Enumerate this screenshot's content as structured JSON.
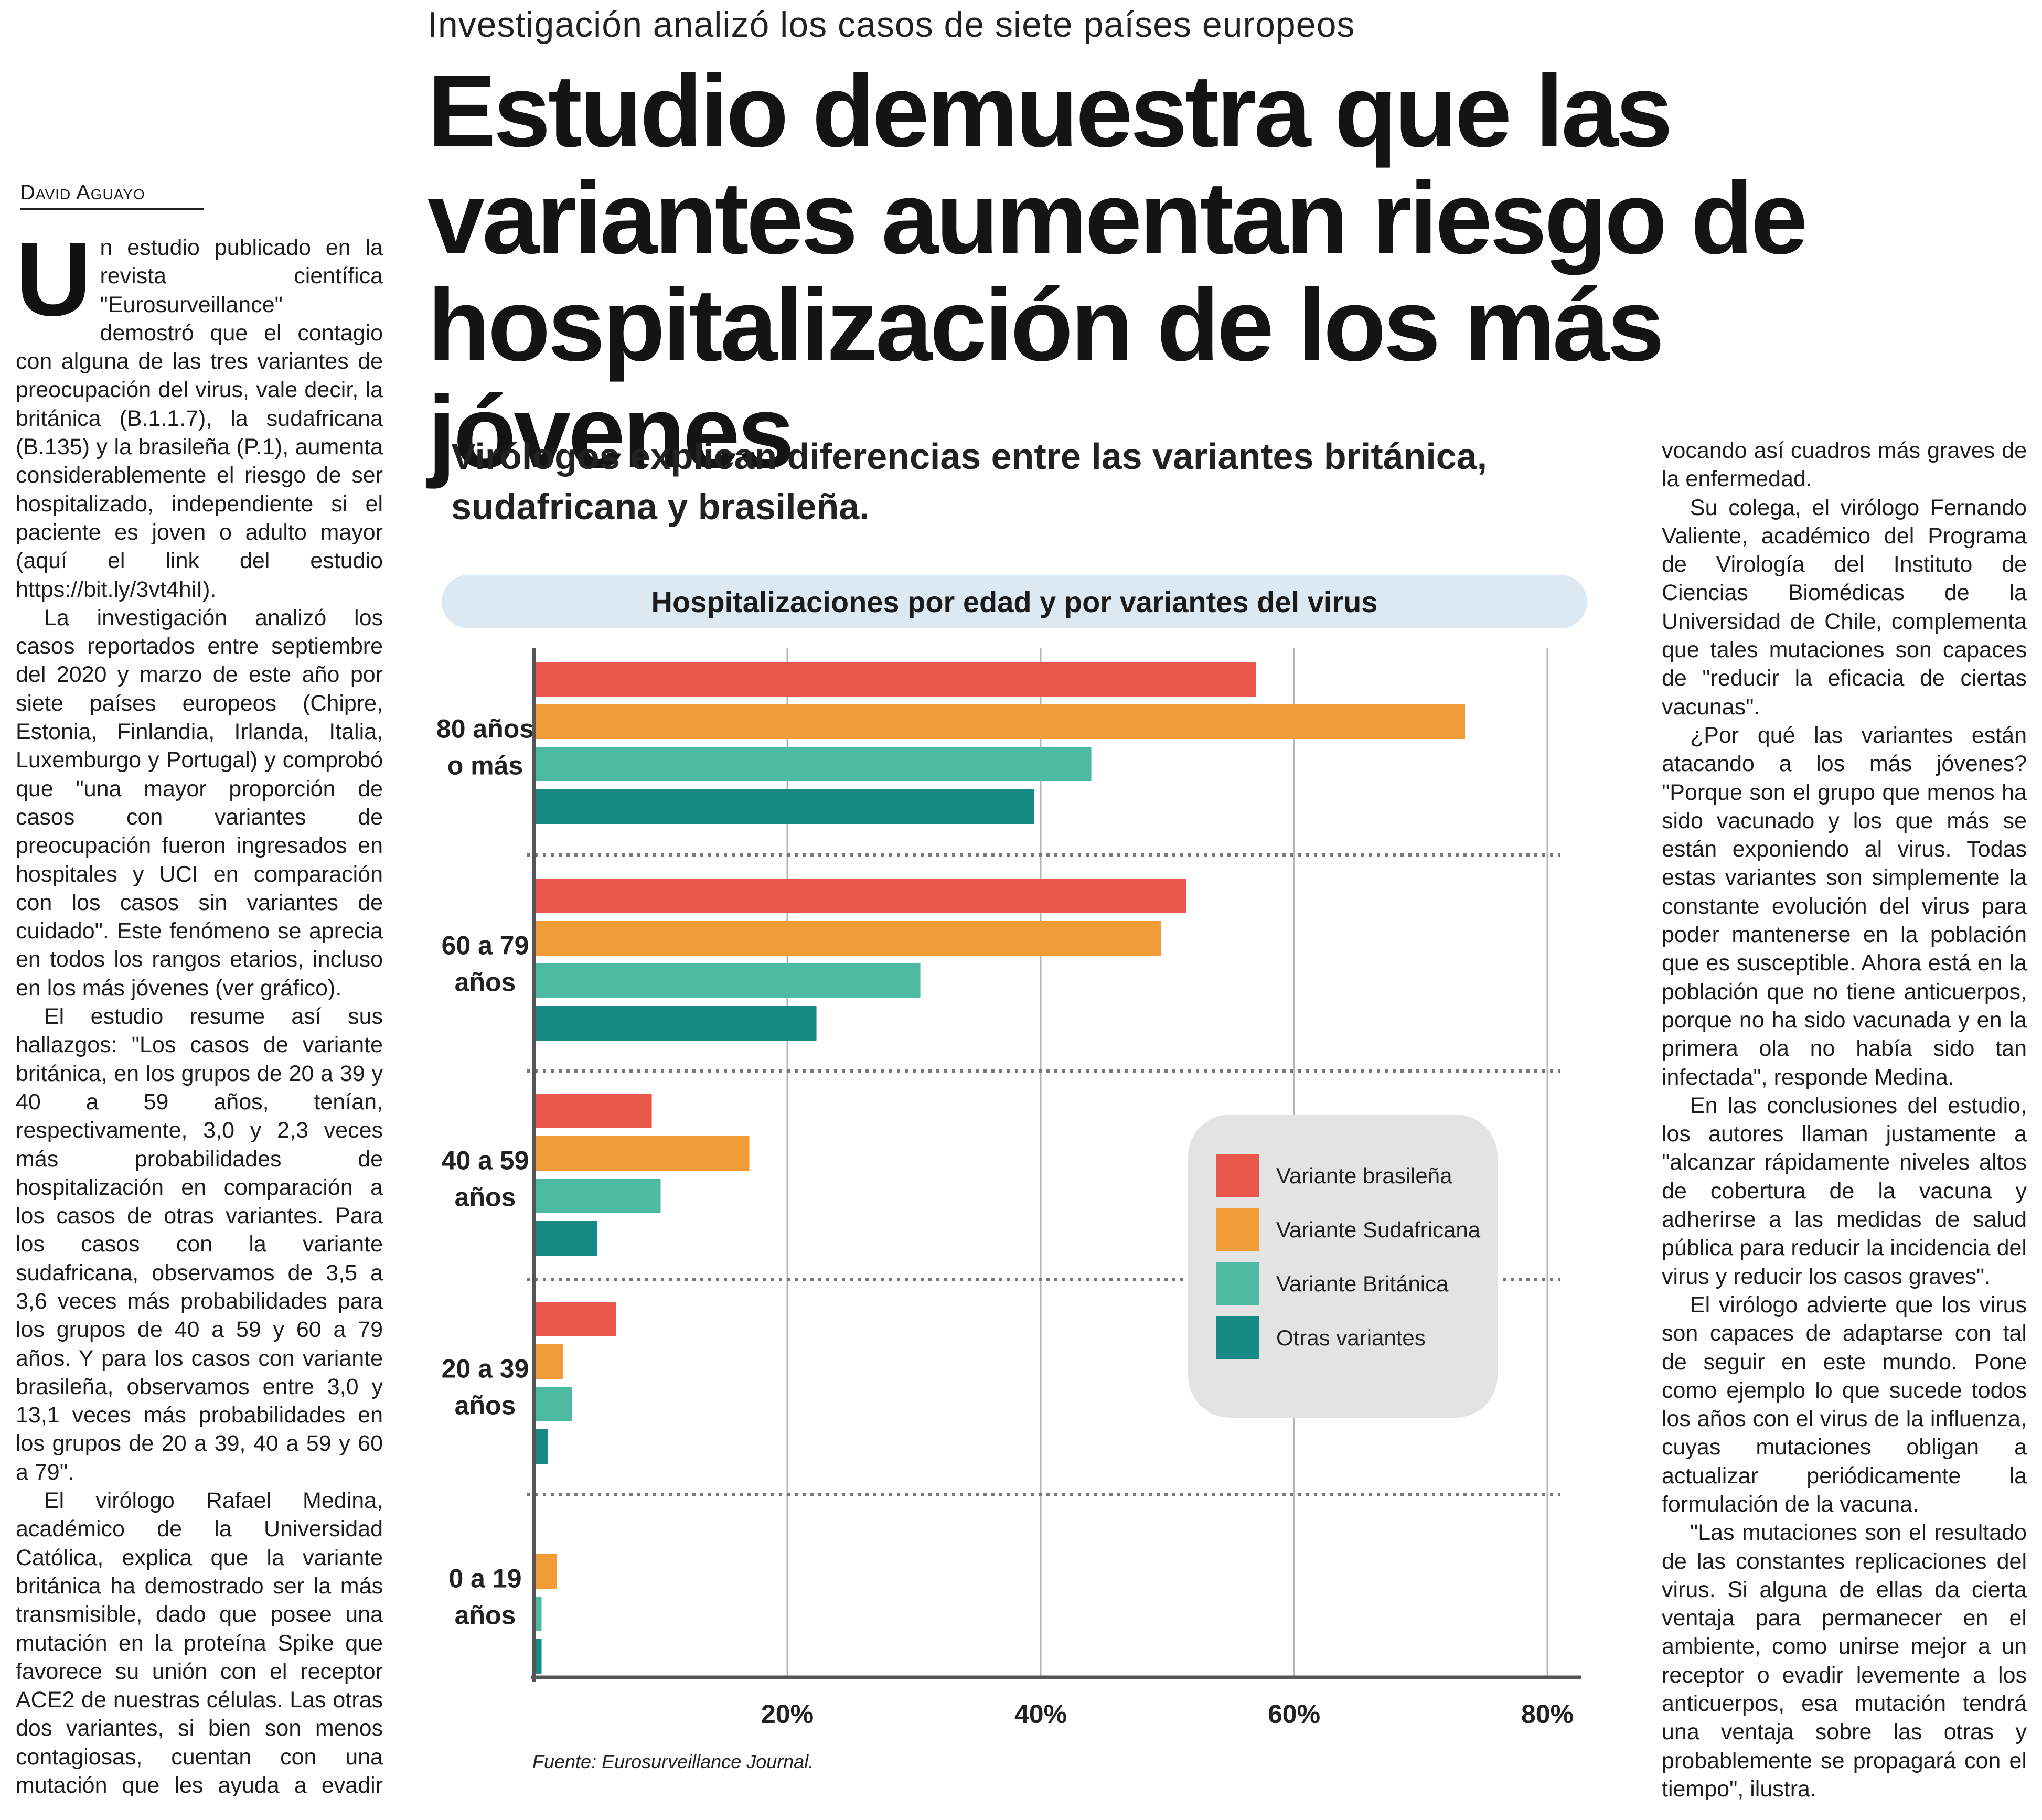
{
  "kicker": "Investigación analizó los casos de siete países europeos",
  "headline": "Estudio demuestra que las variantes aumentan riesgo de hospitalización de los más jóvenes",
  "byline": "David Aguayo",
  "subhead": "Virólogos explican diferencias entre las variantes británica, sudafricana y brasileña.",
  "left_column": {
    "dropcap": "U",
    "paragraphs": [
      "n estudio publicado en la revista científica \"Eurosurveillance\" demostró que el contagio con alguna de las tres variantes de preocupación del virus, vale decir, la británica (B.1.1.7), la sudafricana (B.135) y la brasileña (P.1), aumenta considerablemente el riesgo de ser hospitalizado, independiente si el paciente es joven o adulto mayor (aquí el link del estudio https://bit.ly/3vt4hiI).",
      "La investigación analizó los casos reportados entre septiembre del 2020 y marzo de este año por siete países europeos (Chipre, Estonia, Finlandia, Irlanda, Italia, Luxemburgo y Portugal) y comprobó que \"una mayor proporción de casos con variantes de preocupación fueron ingresados en hospitales y UCI en comparación con los casos sin variantes de cuidado\". Este fenómeno se aprecia en todos los rangos etarios, incluso en los más jóvenes (ver gráfico).",
      "El estudio resume así sus hallazgos: \"Los casos de variante británica, en los grupos de 20 a 39 y 40 a 59 años, tenían, respectivamente, 3,0 y 2,3 veces más probabilidades de hospitalización en comparación a los casos de otras variantes. Para los casos con la variante sudafricana, observamos de 3,5 a 3,6 veces más probabilidades para los grupos de 40 a 59 y 60 a 79 años. Y para los casos con variante brasileña, observamos entre 3,0 y 13,1 veces más probabilidades en los grupos de 20 a 39, 40 a 59 y 60 a 79\".",
      "El virólogo Rafael Medina, académico de la Universidad Católica, explica que la variante británica ha demostrado ser la más transmisible, dado que posee una mutación en la proteína Spike que favorece su unión con el receptor ACE2 de nuestras células. Las otras dos variantes, si bien son menos contagiosas, cuentan con una mutación que les ayuda a evadir con más facilidad la respuesta inmune, pro-"
    ]
  },
  "right_column": {
    "paragraphs": [
      "vocando así cuadros más graves de la enfermedad.",
      "Su colega, el virólogo Fernando Valiente, académico del Programa de Virología del Instituto de Ciencias Biomédicas de la Universidad de Chile, complementa que tales mutaciones son capaces de \"reducir la eficacia de ciertas vacunas\".",
      "¿Por qué las variantes están atacando a los más jóvenes? \"Porque son el grupo que menos ha sido vacunado y los que más se están exponiendo al virus. Todas estas variantes son simplemente la constante evolución del virus para poder mantenerse en la población que es susceptible. Ahora está en la población que no tiene anticuerpos, porque no ha sido vacunada y en la primera ola no había sido tan infectada\", responde Medina.",
      "En las conclusiones del estudio, los autores llaman justamente a \"alcanzar rápidamente niveles altos de cobertura de la vacuna y adherirse a las medidas de salud pública para reducir la incidencia del virus y reducir los casos graves\".",
      "El virólogo advierte que los virus son capaces de adaptarse con tal de seguir en este mundo. Pone como ejemplo lo que sucede todos los años con el virus de la influenza, cuyas mutaciones obligan a actualizar periódicamente la formulación de la vacuna.",
      "\"Las mutaciones son el resultado de las constantes replicaciones del virus. Si alguna de ellas da cierta ventaja para permanecer en el ambiente, como unirse mejor a un receptor o evadir levemente a los anticuerpos, esa mutación tendrá una ventaja sobre las otras y probablemente se propagará con el tiempo\", ilustra."
    ]
  },
  "source": "Fuente: Eurosurveillance Journal.",
  "chart_data": {
    "type": "bar",
    "orientation": "horizontal",
    "title": "Hospitalizaciones por edad y por variantes del virus",
    "categories": [
      [
        "80 años",
        "o más"
      ],
      [
        "60 a 79",
        "años"
      ],
      [
        "40 a 59",
        "años"
      ],
      [
        "20 a 39",
        "años"
      ],
      [
        "0 a 19",
        "años"
      ]
    ],
    "series": [
      {
        "name": "Variante brasileña",
        "color": "#e8574a",
        "values": [
          57,
          51.5,
          9.3,
          6.5,
          null
        ]
      },
      {
        "name": "Variante Sudafricana",
        "color": "#f29c38",
        "values": [
          73.5,
          49.5,
          17,
          2.3,
          1.8
        ]
      },
      {
        "name": "Variante Británica",
        "color": "#4dbba2",
        "values": [
          44,
          30.5,
          10,
          3,
          0.6
        ]
      },
      {
        "name": "Otras variantes",
        "color": "#178a86",
        "values": [
          39.5,
          22.3,
          5,
          1.1,
          0.6
        ]
      }
    ],
    "xlim": [
      0,
      80
    ],
    "xticks": [
      20,
      40,
      60,
      80
    ],
    "tick_suffix": "%",
    "grid": true,
    "legend_position": "right"
  }
}
